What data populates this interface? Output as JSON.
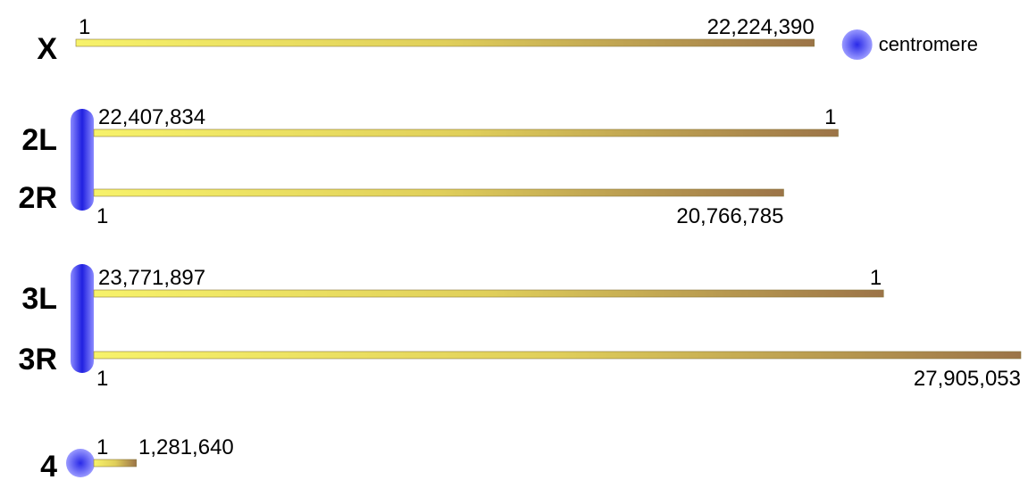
{
  "centromere_label": "centromere",
  "arms": [
    {
      "name": "X",
      "origin": "1",
      "length": {
        "value": 22224390,
        "label": "22,224,390"
      }
    },
    {
      "name": "2L",
      "origin": "1",
      "length": {
        "value": 22407834,
        "label": "22,407,834"
      }
    },
    {
      "name": "2R",
      "origin": "1",
      "length": {
        "value": 20766785,
        "label": "20,766,785"
      }
    },
    {
      "name": "3L",
      "origin": "1",
      "length": {
        "value": 23771897,
        "label": "23,771,897"
      }
    },
    {
      "name": "3R",
      "origin": "1",
      "length": {
        "value": 27905053,
        "label": "27,905,053"
      }
    },
    {
      "name": "4",
      "origin": "1",
      "length": {
        "value": 1281640,
        "label": "1,281,640"
      }
    }
  ]
}
